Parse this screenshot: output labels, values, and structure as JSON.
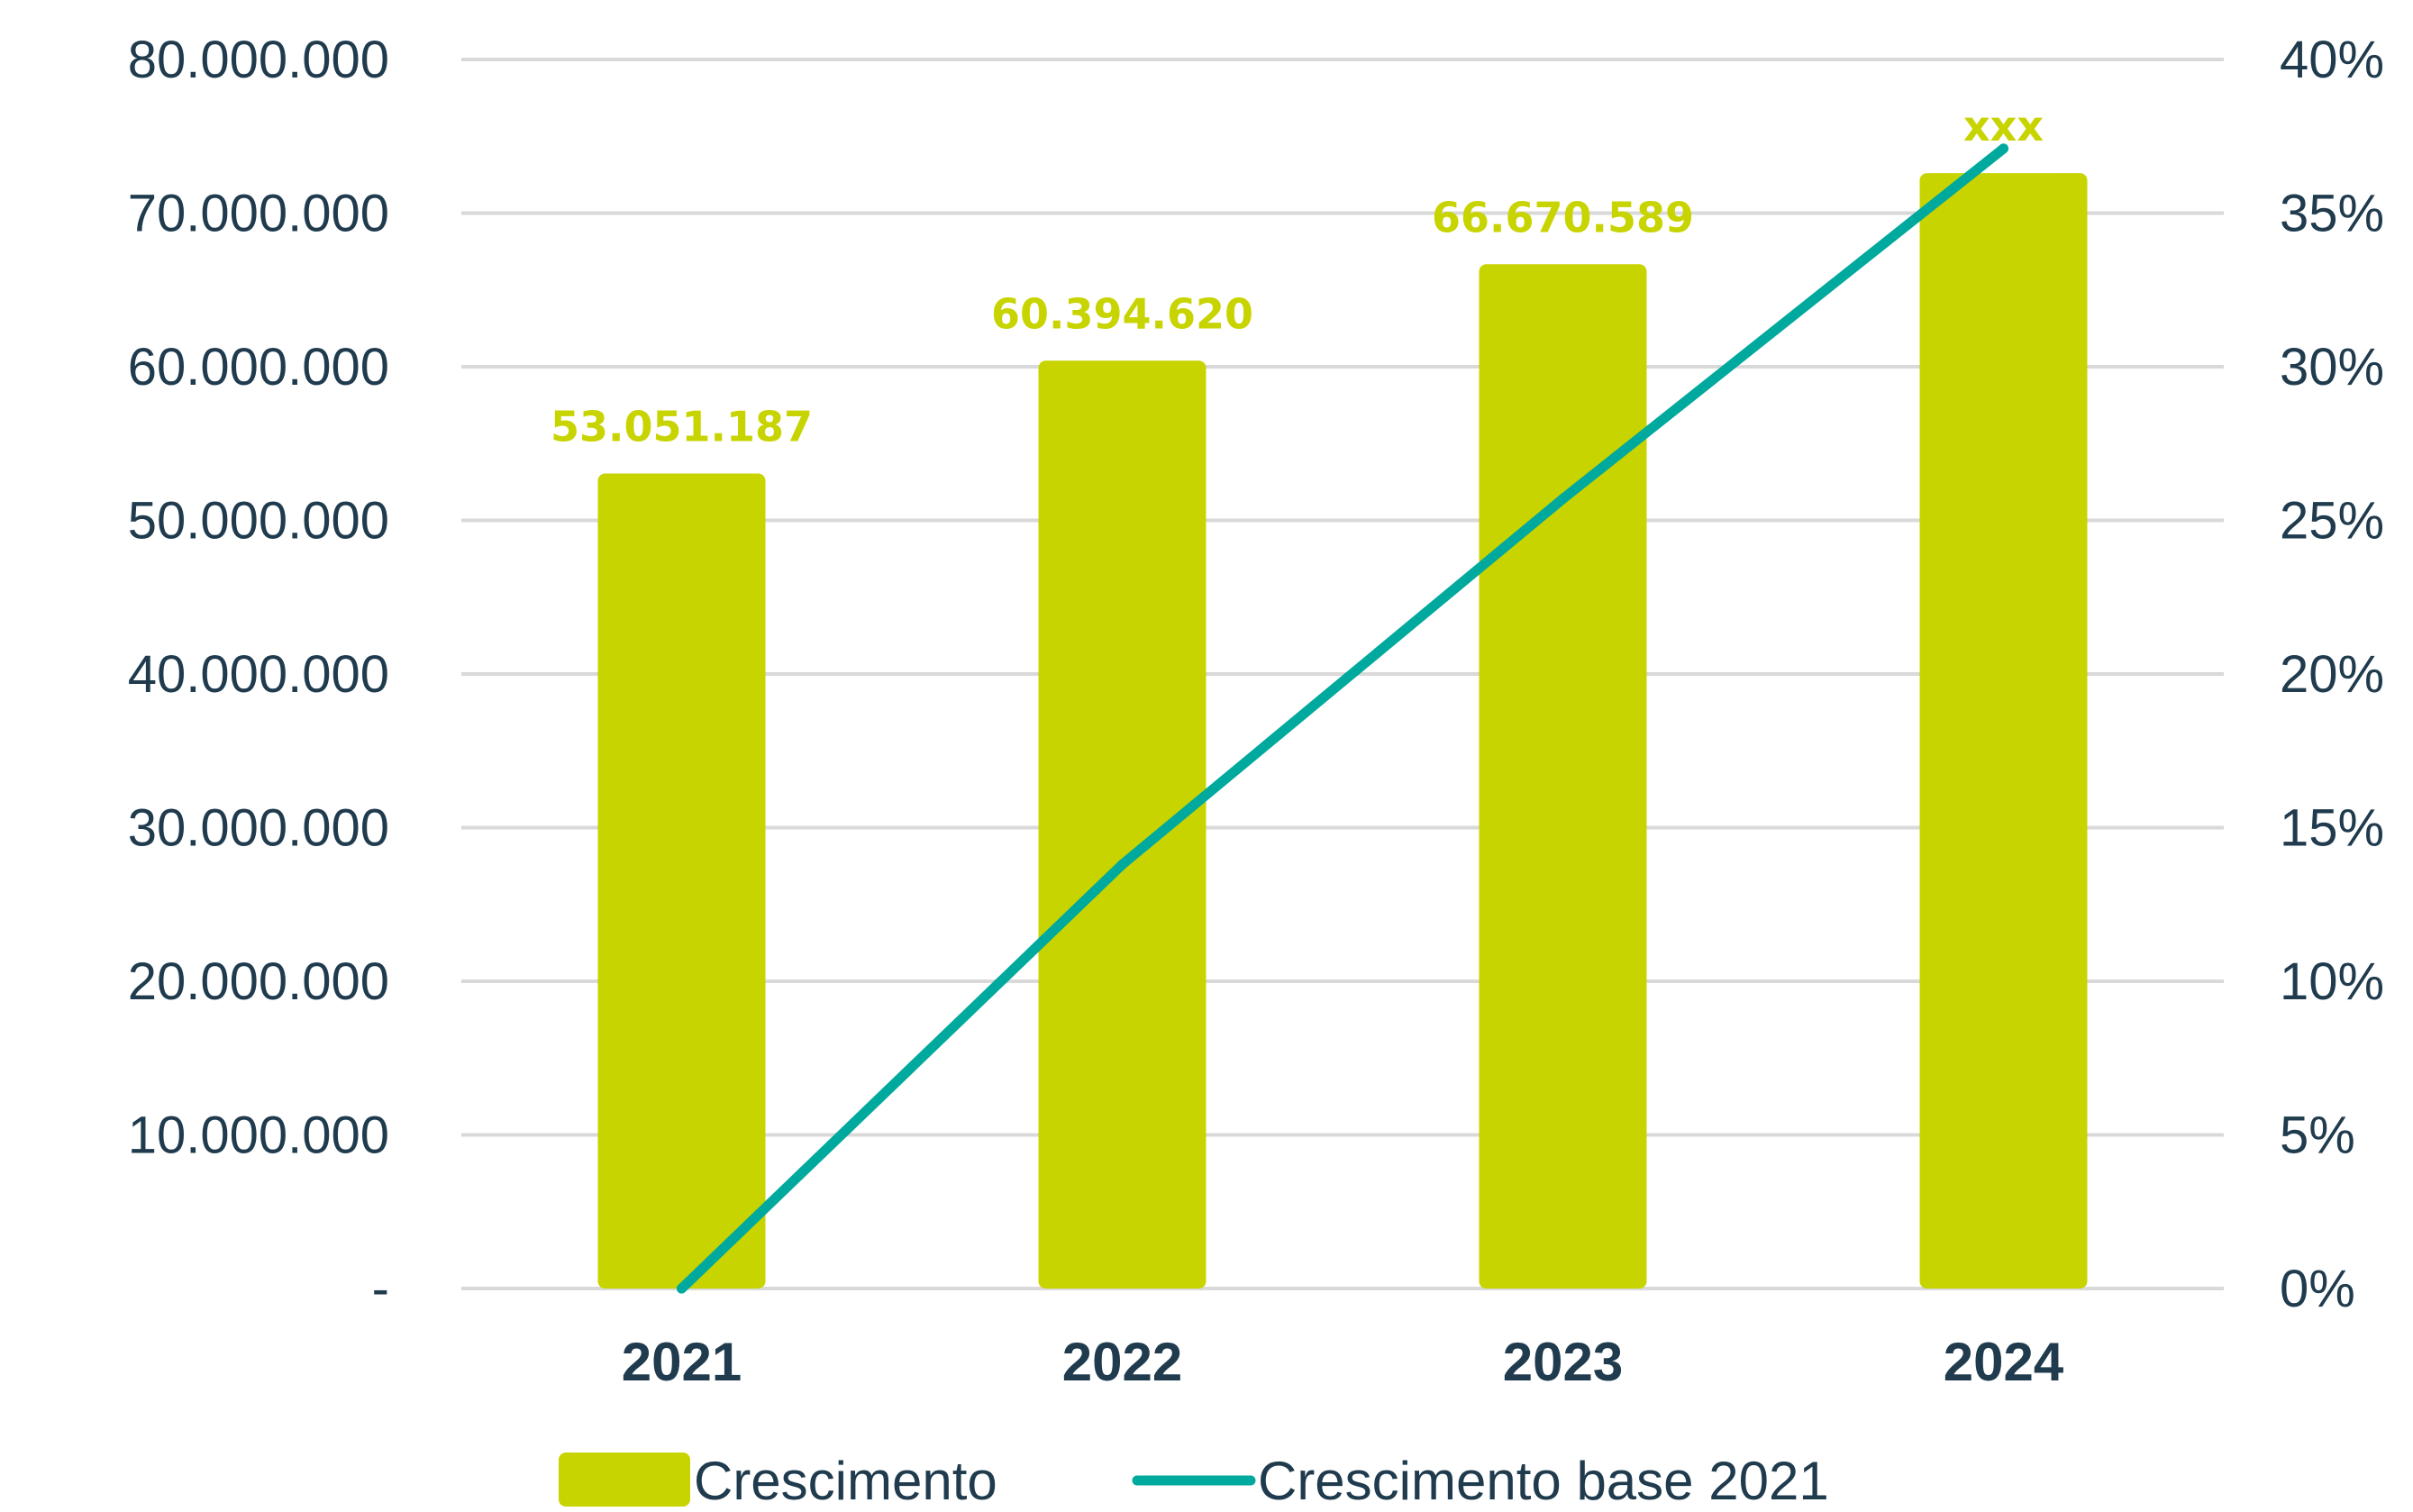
{
  "chart_data": {
    "type": "bar",
    "categories": [
      "2021",
      "2022",
      "2023",
      "2024"
    ],
    "series": [
      {
        "name": "Crescimento",
        "type": "bar",
        "axis": "left",
        "values": [
          53051187,
          60394620,
          66670589,
          72600000
        ],
        "data_labels": [
          "53.051.187",
          "60.394.620",
          "66.670.589",
          "xxx"
        ],
        "color": "#c8d400"
      },
      {
        "name": "Crescimento base 2021",
        "type": "line",
        "axis": "right",
        "values": [
          0,
          0.138,
          0.257,
          0.371
        ],
        "color": "#00a99d"
      }
    ],
    "y_left": {
      "ylim": [
        0,
        80000000
      ],
      "ticks": [
        0,
        10000000,
        20000000,
        30000000,
        40000000,
        50000000,
        60000000,
        70000000,
        80000000
      ],
      "tick_labels": [
        "-",
        "10.000.000",
        "20.000.000",
        "30.000.000",
        "40.000.000",
        "50.000.000",
        "60.000.000",
        "70.000.000",
        "80.000.000"
      ]
    },
    "y_right": {
      "ylim": [
        0,
        0.4
      ],
      "ticks": [
        0,
        0.05,
        0.1,
        0.15,
        0.2,
        0.25,
        0.3,
        0.35,
        0.4
      ],
      "tick_labels": [
        "0%",
        "5%",
        "10%",
        "15%",
        "20%",
        "25%",
        "30%",
        "35%",
        "40%"
      ]
    },
    "title": "",
    "xlabel": "",
    "ylabel": "",
    "grid": true,
    "legend": "bottom",
    "label_color": "#c8d400",
    "text_color": "#1f3b4d"
  }
}
